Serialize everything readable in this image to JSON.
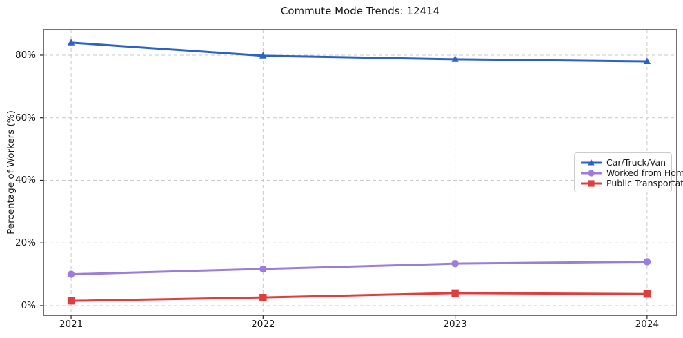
{
  "chart_data": {
    "type": "line",
    "title": "Commute Mode Trends: 12414",
    "xlabel": "",
    "ylabel": "Percentage of Workers (%)",
    "x": [
      2021,
      2022,
      2023,
      2024
    ],
    "x_tick_labels": [
      "2021",
      "2022",
      "2023",
      "2024"
    ],
    "series": [
      {
        "name": "Car/Truck/Van",
        "marker": "triangle",
        "color": "#2b62c6",
        "values": [
          84.0,
          79.8,
          78.7,
          78.0
        ]
      },
      {
        "name": "Worked from Home",
        "marker": "circle",
        "color": "#9b7ddb",
        "values": [
          10.0,
          11.7,
          13.4,
          14.0
        ]
      },
      {
        "name": "Public Transportation",
        "marker": "square",
        "color": "#e03e3e",
        "values": [
          1.5,
          2.6,
          4.0,
          3.7
        ]
      }
    ],
    "yticks": [
      0,
      20,
      40,
      60,
      80
    ],
    "ytick_labels": [
      "0%",
      "20%",
      "40%",
      "60%",
      "80%"
    ],
    "xlim": [
      2020.856,
      2024.155
    ],
    "ylim": [
      -3.09,
      88.15
    ],
    "grid": true,
    "grid_style": "dashed",
    "legend_position": "center-right",
    "colors": {
      "grid": "#c9c9c9",
      "axis": "#262626",
      "text": "#1a1a1a",
      "background": "#ffffff",
      "legend_border": "#cccccc"
    }
  }
}
